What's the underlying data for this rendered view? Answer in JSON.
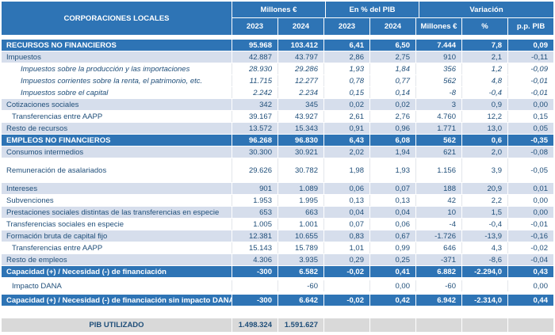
{
  "colors": {
    "header_blue": "#2E74B5",
    "band_blue": "#D6DEEC",
    "text_navy": "#1F4E79",
    "footer_gray": "#D9D9D9"
  },
  "table": {
    "title": "CORPORACIONES LOCALES",
    "col_groups": [
      {
        "label": "Millones €",
        "span": 2
      },
      {
        "label": "En % del PIB",
        "span": 2
      },
      {
        "label": "Variación",
        "span": 3
      }
    ],
    "sub_headers": [
      "2023",
      "2024",
      "2023",
      "2024",
      "Millones €",
      "%",
      "p.p. PIB"
    ],
    "rows": [
      {
        "label": "RECURSOS NO FINANCIEROS",
        "type": "total",
        "values": [
          "95.968",
          "103.412",
          "6,41",
          "6,50",
          "7.444",
          "7,8",
          "0,09"
        ]
      },
      {
        "label": "Impuestos",
        "type": "band",
        "values": [
          "42.887",
          "43.797",
          "2,86",
          "2,75",
          "910",
          "2,1",
          "-0,11"
        ]
      },
      {
        "label": "Impuestos sobre la producción y las importaciones",
        "type": "sub",
        "values": [
          "28.930",
          "29.286",
          "1,93",
          "1,84",
          "356",
          "1,2",
          "-0,09"
        ]
      },
      {
        "label": "Impuestos corrientes sobre la renta, el patrimonio, etc.",
        "type": "sub",
        "values": [
          "11.715",
          "12.277",
          "0,78",
          "0,77",
          "562",
          "4,8",
          "-0,01"
        ]
      },
      {
        "label": "Impuestos sobre el capital",
        "type": "sub",
        "values": [
          "2.242",
          "2.234",
          "0,15",
          "0,14",
          "-8",
          "-0,4",
          "-0,01"
        ]
      },
      {
        "label": "Cotizaciones sociales",
        "type": "band",
        "values": [
          "342",
          "345",
          "0,02",
          "0,02",
          "3",
          "0,9",
          "0,00"
        ]
      },
      {
        "label": "Transferencias entre AAPP",
        "type": "plain",
        "indent": 1,
        "values": [
          "39.167",
          "43.927",
          "2,61",
          "2,76",
          "4.760",
          "12,2",
          "0,15"
        ]
      },
      {
        "label": "Resto de recursos",
        "type": "band",
        "values": [
          "13.572",
          "15.343",
          "0,91",
          "0,96",
          "1.771",
          "13,0",
          "0,05"
        ]
      },
      {
        "label": "EMPLEOS NO FINANCIEROS",
        "type": "total",
        "values": [
          "96.268",
          "96.830",
          "6,43",
          "6,08",
          "562",
          "0,6",
          "-0,35"
        ]
      },
      {
        "label": "Consumos intermedios",
        "type": "band",
        "values": [
          "30.300",
          "30.921",
          "2,02",
          "1,94",
          "621",
          "2,0",
          "-0,08"
        ]
      },
      {
        "label": "Remuneración de asalariados",
        "type": "plain",
        "tall": true,
        "values": [
          "29.626",
          "30.782",
          "1,98",
          "1,93",
          "1.156",
          "3,9",
          "-0,05"
        ]
      },
      {
        "label": "Intereses",
        "type": "band",
        "values": [
          "901",
          "1.089",
          "0,06",
          "0,07",
          "188",
          "20,9",
          "0,01"
        ]
      },
      {
        "label": "Subvenciones",
        "type": "plain",
        "values": [
          "1.953",
          "1.995",
          "0,13",
          "0,13",
          "42",
          "2,2",
          "0,00"
        ]
      },
      {
        "label": "Prestaciones sociales distintas de las transferencias en especie",
        "type": "band",
        "values": [
          "653",
          "663",
          "0,04",
          "0,04",
          "10",
          "1,5",
          "0,00"
        ]
      },
      {
        "label": "Transferencias sociales en especie",
        "type": "plain",
        "values": [
          "1.005",
          "1.001",
          "0,07",
          "0,06",
          "-4",
          "-0,4",
          "-0,01"
        ]
      },
      {
        "label": "Formación bruta de capital fijo",
        "type": "band",
        "values": [
          "12.381",
          "10.655",
          "0,83",
          "0,67",
          "-1.726",
          "-13,9",
          "-0,16"
        ]
      },
      {
        "label": "Transferencias entre AAPP",
        "type": "plain",
        "indent": 1,
        "values": [
          "15.143",
          "15.789",
          "1,01",
          "0,99",
          "646",
          "4,3",
          "-0,02"
        ]
      },
      {
        "label": "Resto de empleos",
        "type": "band",
        "values": [
          "4.306",
          "3.935",
          "0,29",
          "0,25",
          "-371",
          "-8,6",
          "-0,04"
        ]
      },
      {
        "label": "Capacidad (+) / Necesidad (-) de financiación",
        "type": "total",
        "gap_after": true,
        "values": [
          "-300",
          "6.582",
          "-0,02",
          "0,41",
          "6.882",
          "-2.294,0",
          "0,43"
        ]
      },
      {
        "label": "Impacto DANA",
        "type": "plain",
        "indent": 1,
        "gap_after": true,
        "values": [
          "",
          "-60",
          "",
          "0,00",
          "-60",
          "",
          "0,00"
        ]
      },
      {
        "label": "Capacidad (+) / Necesidad (-) de financiación  sin impacto DANA",
        "type": "total",
        "values": [
          "-300",
          "6.642",
          "-0,02",
          "0,42",
          "6.942",
          "-2.314,0",
          "0,44"
        ]
      }
    ],
    "footer": {
      "label": "PIB UTILIZADO",
      "values": [
        "1.498.324",
        "1.591.627",
        "",
        "",
        "",
        "",
        ""
      ]
    }
  }
}
